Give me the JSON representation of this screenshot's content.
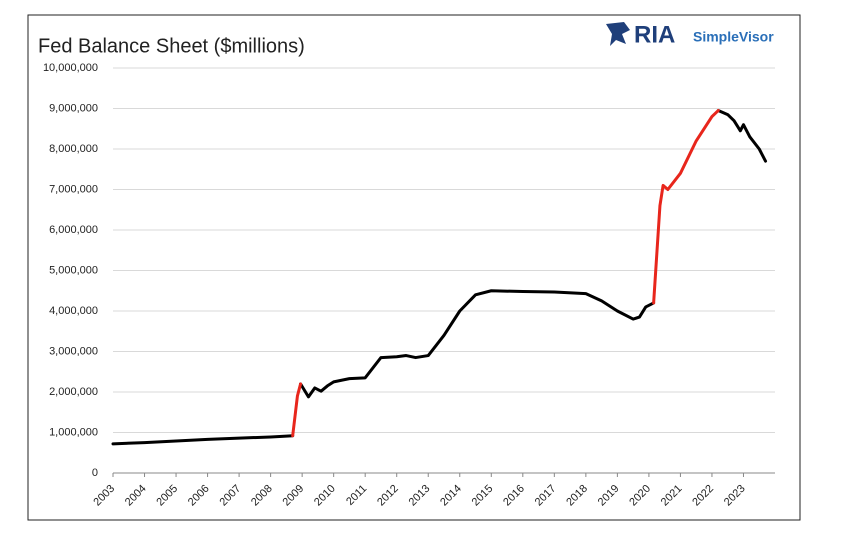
{
  "chart_data": {
    "type": "line",
    "title": "Fed Balance Sheet ($millions)",
    "logo": {
      "name": "RIA",
      "sub": "SimpleVisor"
    },
    "x": [
      2003.0,
      2004.0,
      2005.0,
      2006.0,
      2007.0,
      2008.0,
      2008.5,
      2008.7,
      2008.85,
      2008.95,
      2009.2,
      2009.4,
      2009.6,
      2009.8,
      2010.0,
      2010.5,
      2011.0,
      2011.5,
      2012.0,
      2012.3,
      2012.6,
      2013.0,
      2013.5,
      2014.0,
      2014.5,
      2015.0,
      2016.0,
      2017.0,
      2018.0,
      2018.5,
      2019.0,
      2019.5,
      2019.7,
      2019.9,
      2020.15,
      2020.35,
      2020.45,
      2020.6,
      2021.0,
      2021.5,
      2022.0,
      2022.2,
      2022.5,
      2022.7,
      2022.9,
      2023.0,
      2023.2,
      2023.5,
      2023.7
    ],
    "series": [
      {
        "color": "#000000",
        "values": [
          720000,
          750000,
          790000,
          830000,
          860000,
          890000,
          910000,
          920000,
          null,
          2200000,
          1880000,
          2100000,
          2020000,
          2150000,
          2250000,
          2330000,
          2350000,
          2850000,
          2870000,
          2900000,
          2850000,
          2900000,
          3400000,
          4000000,
          4400000,
          4500000,
          4480000,
          4470000,
          4430000,
          4250000,
          4000000,
          3800000,
          3850000,
          4100000,
          4200000,
          null,
          null,
          null,
          null,
          null,
          null,
          8950000,
          8850000,
          8700000,
          8450000,
          8600000,
          8300000,
          8000000,
          7700000
        ]
      },
      {
        "color": "#e8261c",
        "values": [
          null,
          null,
          null,
          null,
          null,
          null,
          null,
          920000,
          1900000,
          2200000,
          null,
          null,
          null,
          null,
          null,
          null,
          null,
          null,
          null,
          null,
          null,
          null,
          null,
          null,
          null,
          null,
          null,
          null,
          null,
          null,
          null,
          null,
          null,
          null,
          4200000,
          6600000,
          7100000,
          7000000,
          7400000,
          8200000,
          8800000,
          8950000,
          null,
          null,
          null,
          null,
          null,
          null,
          null
        ]
      }
    ],
    "xlim": [
      2003,
      2024
    ],
    "xticks": [
      2003,
      2004,
      2005,
      2006,
      2007,
      2008,
      2009,
      2010,
      2011,
      2012,
      2013,
      2014,
      2015,
      2016,
      2017,
      2018,
      2019,
      2020,
      2021,
      2022,
      2023
    ],
    "ylim": [
      0,
      10000000
    ],
    "yticks": [
      0,
      {
        "value": 1000000,
        "label": "1,000,000"
      },
      {
        "value": 2000000,
        "label": "2,000,000"
      },
      {
        "value": 3000000,
        "label": "3,000,000"
      },
      {
        "value": 4000000,
        "label": "4,000,000"
      },
      {
        "value": 5000000,
        "label": "5,000,000"
      },
      {
        "value": 6000000,
        "label": "6,000,000"
      },
      {
        "value": 7000000,
        "label": "7,000,000"
      },
      {
        "value": 8000000,
        "label": "8,000,000"
      },
      {
        "value": 9000000,
        "label": "9,000,000"
      },
      {
        "value": 10000000,
        "label": "10,000,000"
      }
    ],
    "grid": true
  }
}
